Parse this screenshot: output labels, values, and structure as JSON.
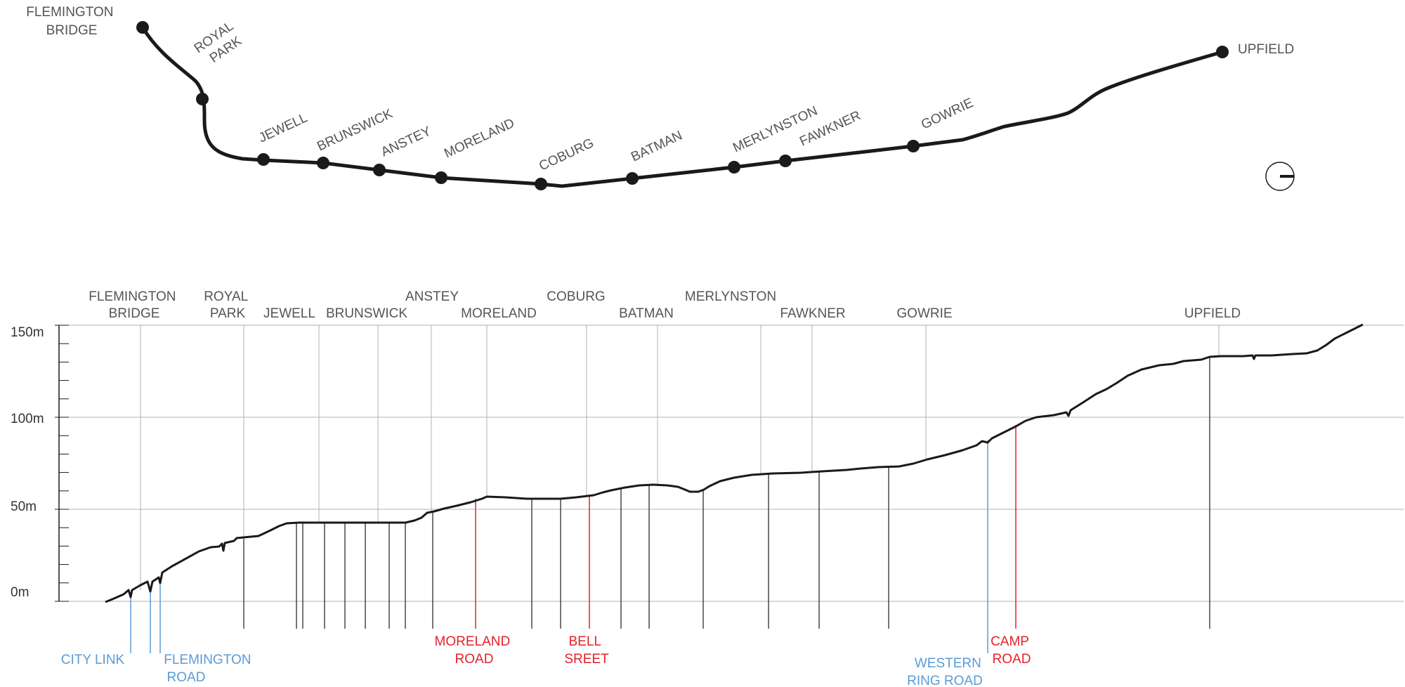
{
  "map": {
    "stations": [
      {
        "id": "flemington-bridge",
        "label": [
          "FLEMINGTON",
          "BRIDGE"
        ]
      },
      {
        "id": "royal-park",
        "label": [
          "ROYAL",
          "PARK"
        ]
      },
      {
        "id": "jewell",
        "label": [
          "JEWELL"
        ]
      },
      {
        "id": "brunswick",
        "label": [
          "BRUNSWICK"
        ]
      },
      {
        "id": "anstey",
        "label": [
          "ANSTEY"
        ]
      },
      {
        "id": "moreland",
        "label": [
          "MORELAND"
        ]
      },
      {
        "id": "coburg",
        "label": [
          "COBURG"
        ]
      },
      {
        "id": "batman",
        "label": [
          "BATMAN"
        ]
      },
      {
        "id": "merlynston",
        "label": [
          "MERLYNSTON"
        ]
      },
      {
        "id": "fawkner",
        "label": [
          "FAWKNER"
        ]
      },
      {
        "id": "gowrie",
        "label": [
          "GOWRIE"
        ]
      },
      {
        "id": "upfield",
        "label": [
          "UPFIELD"
        ]
      }
    ],
    "north_symbol": "north-arrow-icon"
  },
  "profile": {
    "y_axis": {
      "ticks": [
        {
          "value": 0,
          "label": "0m"
        },
        {
          "value": 50,
          "label": "50m"
        },
        {
          "value": 100,
          "label": "100m"
        },
        {
          "value": 150,
          "label": "150m"
        }
      ],
      "range": [
        0,
        150
      ],
      "minor_step": 10
    },
    "station_headers": [
      {
        "lines": [
          "FLEMINGTON",
          "BRIDGE"
        ]
      },
      {
        "lines": [
          "ROYAL",
          "PARK"
        ]
      },
      {
        "lines": [
          "JEWELL"
        ]
      },
      {
        "lines": [
          "BRUNSWICK"
        ]
      },
      {
        "lines": [
          "ANSTEY"
        ]
      },
      {
        "lines": [
          "MORELAND"
        ]
      },
      {
        "lines": [
          "COBURG"
        ]
      },
      {
        "lines": [
          "BATMAN"
        ]
      },
      {
        "lines": [
          "MERLYNSTON"
        ]
      },
      {
        "lines": [
          "FAWKNER"
        ]
      },
      {
        "lines": [
          "GOWRIE"
        ]
      },
      {
        "lines": [
          "UPFIELD"
        ]
      }
    ],
    "level_crossings": [
      {
        "lines": [
          "MORELAND",
          "ROAD"
        ]
      },
      {
        "lines": [
          "BELL",
          "SREET"
        ]
      },
      {
        "lines": [
          "CAMP",
          "ROAD"
        ]
      }
    ],
    "grade_separations": [
      {
        "lines": [
          "CITY LINK"
        ]
      },
      {
        "lines": [
          "FLEMINGTON",
          "ROAD"
        ]
      },
      {
        "lines": [
          "WESTERN",
          "RING ROAD"
        ]
      }
    ],
    "colors": {
      "line": "#1a1a1a",
      "grid": "#b0b0b0",
      "level_crossing": "#e2232a",
      "grade_separation": "#5b9bd5",
      "label": "#555555"
    }
  }
}
